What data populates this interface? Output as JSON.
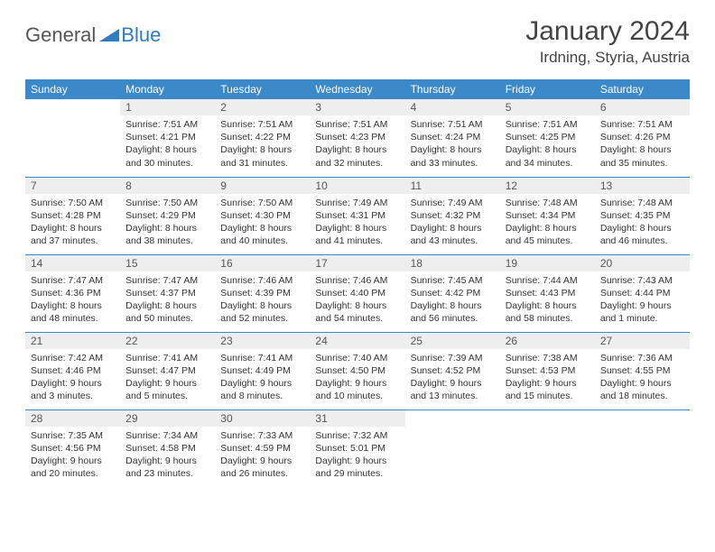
{
  "brand": {
    "general": "General",
    "blue": "Blue"
  },
  "title": "January 2024",
  "location": "Irdning, Styria, Austria",
  "colors": {
    "header_bg": "#3b89c9",
    "header_text": "#ffffff",
    "daynum_bg": "#eeeeee",
    "rule": "#3b89c9",
    "logo_blue": "#2f7cc0",
    "logo_gray": "#555555"
  },
  "day_headers": [
    "Sunday",
    "Monday",
    "Tuesday",
    "Wednesday",
    "Thursday",
    "Friday",
    "Saturday"
  ],
  "weeks": [
    [
      {
        "num": "",
        "sunrise": "",
        "sunset": "",
        "daylight": ""
      },
      {
        "num": "1",
        "sunrise": "Sunrise: 7:51 AM",
        "sunset": "Sunset: 4:21 PM",
        "daylight": "Daylight: 8 hours and 30 minutes."
      },
      {
        "num": "2",
        "sunrise": "Sunrise: 7:51 AM",
        "sunset": "Sunset: 4:22 PM",
        "daylight": "Daylight: 8 hours and 31 minutes."
      },
      {
        "num": "3",
        "sunrise": "Sunrise: 7:51 AM",
        "sunset": "Sunset: 4:23 PM",
        "daylight": "Daylight: 8 hours and 32 minutes."
      },
      {
        "num": "4",
        "sunrise": "Sunrise: 7:51 AM",
        "sunset": "Sunset: 4:24 PM",
        "daylight": "Daylight: 8 hours and 33 minutes."
      },
      {
        "num": "5",
        "sunrise": "Sunrise: 7:51 AM",
        "sunset": "Sunset: 4:25 PM",
        "daylight": "Daylight: 8 hours and 34 minutes."
      },
      {
        "num": "6",
        "sunrise": "Sunrise: 7:51 AM",
        "sunset": "Sunset: 4:26 PM",
        "daylight": "Daylight: 8 hours and 35 minutes."
      }
    ],
    [
      {
        "num": "7",
        "sunrise": "Sunrise: 7:50 AM",
        "sunset": "Sunset: 4:28 PM",
        "daylight": "Daylight: 8 hours and 37 minutes."
      },
      {
        "num": "8",
        "sunrise": "Sunrise: 7:50 AM",
        "sunset": "Sunset: 4:29 PM",
        "daylight": "Daylight: 8 hours and 38 minutes."
      },
      {
        "num": "9",
        "sunrise": "Sunrise: 7:50 AM",
        "sunset": "Sunset: 4:30 PM",
        "daylight": "Daylight: 8 hours and 40 minutes."
      },
      {
        "num": "10",
        "sunrise": "Sunrise: 7:49 AM",
        "sunset": "Sunset: 4:31 PM",
        "daylight": "Daylight: 8 hours and 41 minutes."
      },
      {
        "num": "11",
        "sunrise": "Sunrise: 7:49 AM",
        "sunset": "Sunset: 4:32 PM",
        "daylight": "Daylight: 8 hours and 43 minutes."
      },
      {
        "num": "12",
        "sunrise": "Sunrise: 7:48 AM",
        "sunset": "Sunset: 4:34 PM",
        "daylight": "Daylight: 8 hours and 45 minutes."
      },
      {
        "num": "13",
        "sunrise": "Sunrise: 7:48 AM",
        "sunset": "Sunset: 4:35 PM",
        "daylight": "Daylight: 8 hours and 46 minutes."
      }
    ],
    [
      {
        "num": "14",
        "sunrise": "Sunrise: 7:47 AM",
        "sunset": "Sunset: 4:36 PM",
        "daylight": "Daylight: 8 hours and 48 minutes."
      },
      {
        "num": "15",
        "sunrise": "Sunrise: 7:47 AM",
        "sunset": "Sunset: 4:37 PM",
        "daylight": "Daylight: 8 hours and 50 minutes."
      },
      {
        "num": "16",
        "sunrise": "Sunrise: 7:46 AM",
        "sunset": "Sunset: 4:39 PM",
        "daylight": "Daylight: 8 hours and 52 minutes."
      },
      {
        "num": "17",
        "sunrise": "Sunrise: 7:46 AM",
        "sunset": "Sunset: 4:40 PM",
        "daylight": "Daylight: 8 hours and 54 minutes."
      },
      {
        "num": "18",
        "sunrise": "Sunrise: 7:45 AM",
        "sunset": "Sunset: 4:42 PM",
        "daylight": "Daylight: 8 hours and 56 minutes."
      },
      {
        "num": "19",
        "sunrise": "Sunrise: 7:44 AM",
        "sunset": "Sunset: 4:43 PM",
        "daylight": "Daylight: 8 hours and 58 minutes."
      },
      {
        "num": "20",
        "sunrise": "Sunrise: 7:43 AM",
        "sunset": "Sunset: 4:44 PM",
        "daylight": "Daylight: 9 hours and 1 minute."
      }
    ],
    [
      {
        "num": "21",
        "sunrise": "Sunrise: 7:42 AM",
        "sunset": "Sunset: 4:46 PM",
        "daylight": "Daylight: 9 hours and 3 minutes."
      },
      {
        "num": "22",
        "sunrise": "Sunrise: 7:41 AM",
        "sunset": "Sunset: 4:47 PM",
        "daylight": "Daylight: 9 hours and 5 minutes."
      },
      {
        "num": "23",
        "sunrise": "Sunrise: 7:41 AM",
        "sunset": "Sunset: 4:49 PM",
        "daylight": "Daylight: 9 hours and 8 minutes."
      },
      {
        "num": "24",
        "sunrise": "Sunrise: 7:40 AM",
        "sunset": "Sunset: 4:50 PM",
        "daylight": "Daylight: 9 hours and 10 minutes."
      },
      {
        "num": "25",
        "sunrise": "Sunrise: 7:39 AM",
        "sunset": "Sunset: 4:52 PM",
        "daylight": "Daylight: 9 hours and 13 minutes."
      },
      {
        "num": "26",
        "sunrise": "Sunrise: 7:38 AM",
        "sunset": "Sunset: 4:53 PM",
        "daylight": "Daylight: 9 hours and 15 minutes."
      },
      {
        "num": "27",
        "sunrise": "Sunrise: 7:36 AM",
        "sunset": "Sunset: 4:55 PM",
        "daylight": "Daylight: 9 hours and 18 minutes."
      }
    ],
    [
      {
        "num": "28",
        "sunrise": "Sunrise: 7:35 AM",
        "sunset": "Sunset: 4:56 PM",
        "daylight": "Daylight: 9 hours and 20 minutes."
      },
      {
        "num": "29",
        "sunrise": "Sunrise: 7:34 AM",
        "sunset": "Sunset: 4:58 PM",
        "daylight": "Daylight: 9 hours and 23 minutes."
      },
      {
        "num": "30",
        "sunrise": "Sunrise: 7:33 AM",
        "sunset": "Sunset: 4:59 PM",
        "daylight": "Daylight: 9 hours and 26 minutes."
      },
      {
        "num": "31",
        "sunrise": "Sunrise: 7:32 AM",
        "sunset": "Sunset: 5:01 PM",
        "daylight": "Daylight: 9 hours and 29 minutes."
      },
      {
        "num": "",
        "sunrise": "",
        "sunset": "",
        "daylight": ""
      },
      {
        "num": "",
        "sunrise": "",
        "sunset": "",
        "daylight": ""
      },
      {
        "num": "",
        "sunrise": "",
        "sunset": "",
        "daylight": ""
      }
    ]
  ]
}
